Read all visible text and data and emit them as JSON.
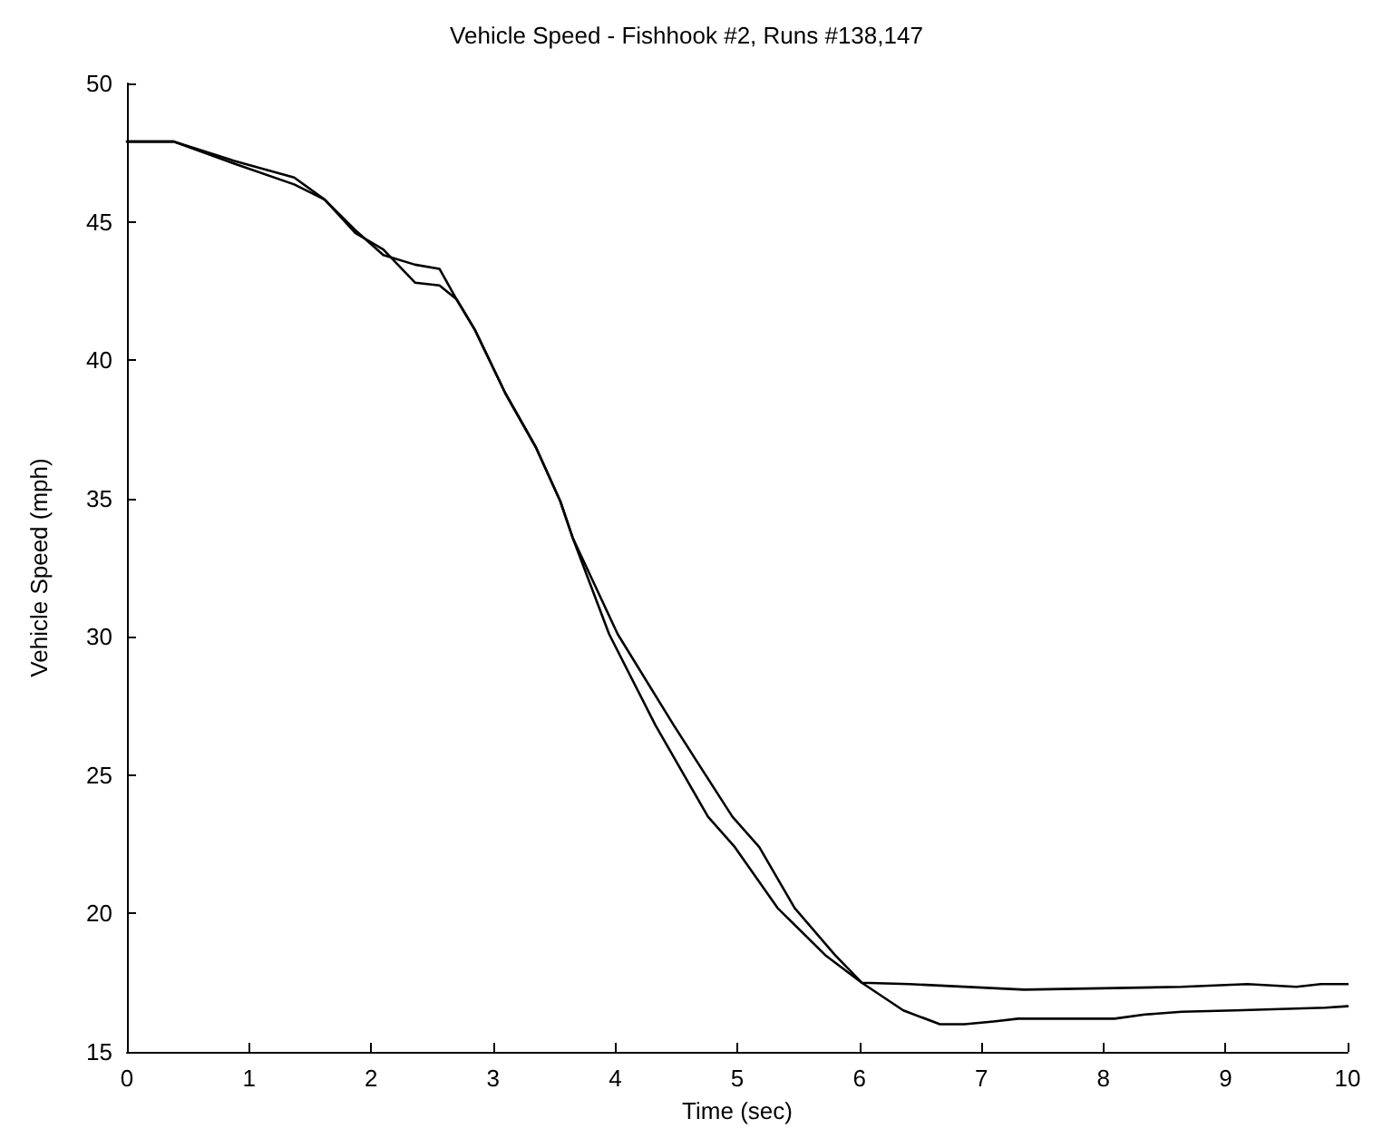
{
  "chart_data": {
    "type": "line",
    "title": "Vehicle Speed - Fishhook #2, Runs #138,147",
    "xlabel": "Time (sec)",
    "ylabel": "Vehicle Speed (mph)",
    "xlim": [
      0,
      10
    ],
    "xticks": [
      0,
      1,
      2,
      3,
      4,
      5,
      6,
      7,
      8,
      9,
      10
    ],
    "ylim": [
      15,
      50
    ],
    "yticks": [
      15,
      20,
      25,
      30,
      35,
      40,
      45,
      50
    ],
    "grid": false,
    "marker": "none",
    "line_style": "solid",
    "series": [
      {
        "color": "#000000",
        "x": [
          0,
          0.38,
          0.88,
          1.37,
          1.62,
          1.87,
          2.1,
          2.36,
          2.56,
          2.7,
          2.85,
          3.1,
          3.35,
          3.55,
          3.65,
          4.02,
          4.48,
          4.96,
          5.18,
          5.47,
          5.8,
          6.02,
          6.41,
          7.35,
          8.64,
          9.18,
          9.58,
          9.78,
          10
        ],
        "values": [
          47.9,
          47.9,
          47.2,
          46.6,
          45.8,
          44.7,
          43.8,
          43.45,
          43.3,
          42.2,
          41.1,
          38.8,
          36.85,
          34.9,
          33.6,
          30.1,
          26.8,
          23.5,
          22.4,
          20.2,
          18.5,
          17.5,
          17.45,
          17.25,
          17.35,
          17.45,
          17.35,
          17.45,
          17.45
        ]
      },
      {
        "color": "#000000",
        "x": [
          0,
          0.38,
          0.88,
          1.37,
          1.62,
          1.87,
          2.1,
          2.36,
          2.56,
          2.7,
          2.85,
          3.1,
          3.35,
          3.55,
          3.65,
          3.95,
          4.33,
          4.76,
          4.98,
          5.33,
          5.72,
          6.02,
          6.36,
          6.66,
          6.86,
          7.1,
          7.3,
          8.09,
          8.34,
          8.64,
          9.08,
          9.82,
          10
        ],
        "values": [
          47.9,
          47.9,
          47.1,
          46.35,
          45.8,
          44.6,
          44.0,
          42.8,
          42.7,
          42.2,
          41.1,
          38.8,
          36.85,
          34.9,
          33.6,
          30.1,
          26.8,
          23.5,
          22.4,
          20.2,
          18.5,
          17.5,
          16.5,
          16.0,
          16.0,
          16.1,
          16.2,
          16.2,
          16.35,
          16.45,
          16.5,
          16.6,
          16.65
        ]
      }
    ]
  }
}
